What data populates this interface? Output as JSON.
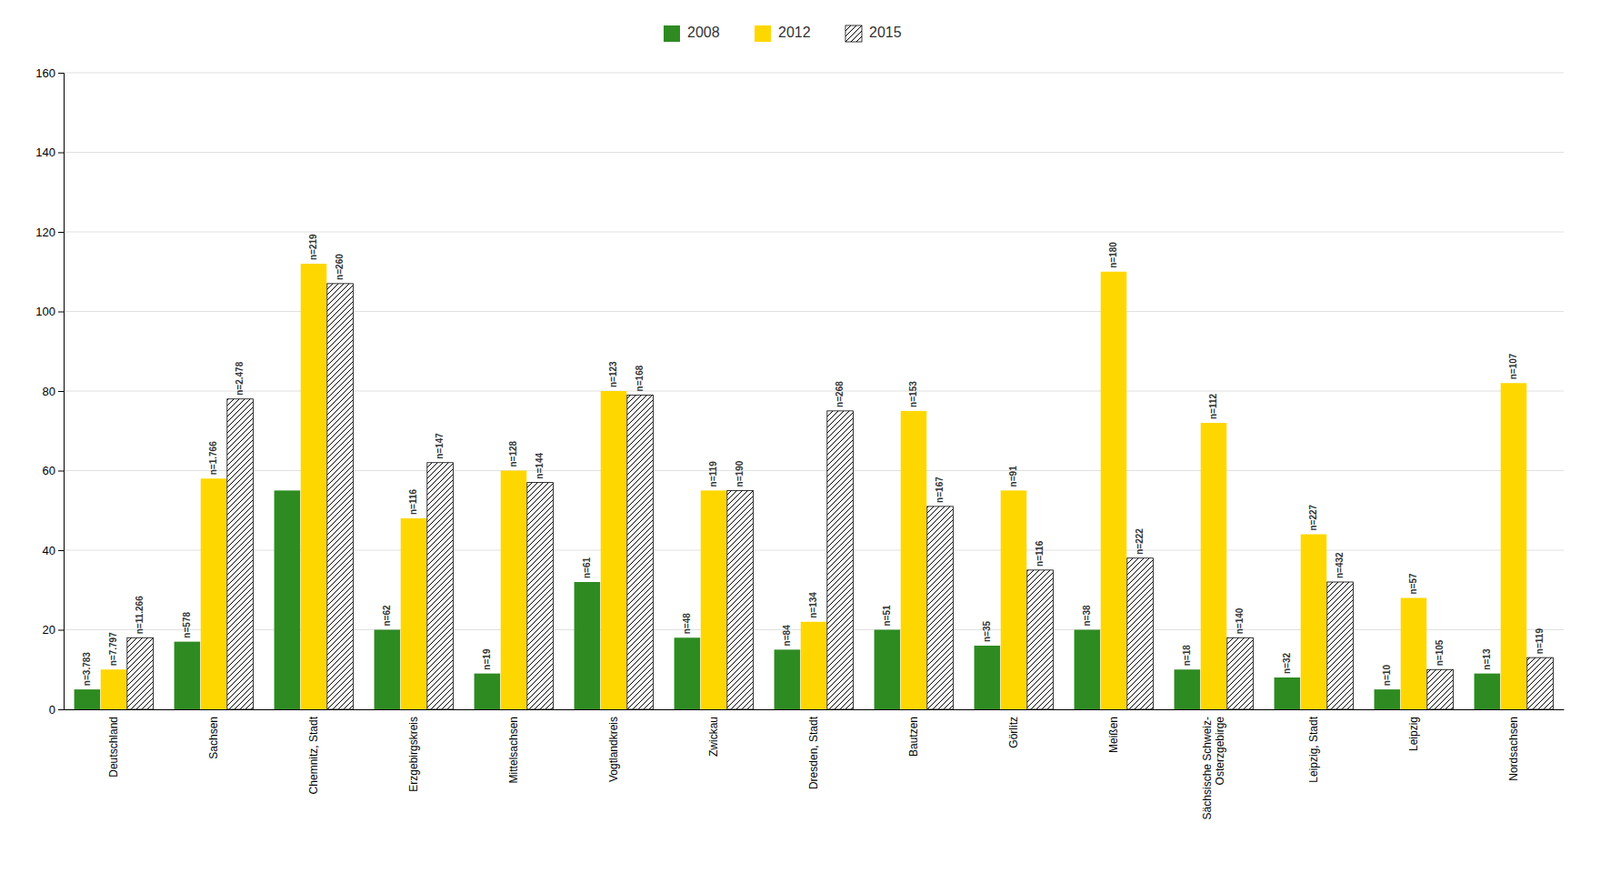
{
  "chart_data": {
    "type": "bar",
    "categories": [
      "Deutschland",
      "Sachsen",
      "Chemnitz, Stadt",
      "Erzgebirgskreis",
      "Mittelsachsen",
      "Vogtlandkreis",
      "Zwickau",
      "Dresden, Stadt",
      "Bautzen",
      "Görlitz",
      "Meißen",
      "Sächsische Schweiz-\nOsterzgebirge",
      "Leipzig, Stadt",
      "Leipzig",
      "Nordsachsen"
    ],
    "series": [
      {
        "name": "2008",
        "color": "#2e8b22",
        "values": [
          5.0,
          17.0,
          55.0,
          20.0,
          9.0,
          32.0,
          18.0,
          15.0,
          20.0,
          16.0,
          20.0,
          10.0,
          8.0,
          5.0,
          9.0
        ],
        "value_labels": [
          "n=3.783",
          "n=578",
          null,
          "n=62",
          "n=19",
          "n=61",
          "n=48",
          "n=84",
          "n=51",
          "n=35",
          "n=38",
          "n=18",
          "n=32",
          "n=10",
          "n=13"
        ]
      },
      {
        "name": "2012",
        "color": "#ffd700",
        "values": [
          10.0,
          58.0,
          112.0,
          48.0,
          60.0,
          80.0,
          55.0,
          22.0,
          75.0,
          55.0,
          110.0,
          72.0,
          44.0,
          28.0,
          82.0
        ],
        "value_labels": [
          "n=7.797",
          "n=1.766",
          "n=219",
          "n=116",
          "n=128",
          "n=123",
          "n=119",
          "n=134",
          "n=153",
          "n=91",
          "n=180",
          "n=112",
          "n=227",
          "n=57",
          "n=107"
        ]
      },
      {
        "name": "2015",
        "color": "#ffffff",
        "values": [
          18.0,
          78.0,
          107.0,
          62.0,
          57.0,
          79.0,
          55.0,
          75.0,
          51.0,
          35.0,
          38.0,
          18.0,
          32.0,
          10.0,
          13.0
        ],
        "value_labels": [
          "n=11.266",
          "n=2.478",
          "n=260",
          "n=147",
          "n=144",
          "n=168",
          "n=190",
          "n=268",
          "n=167",
          "n=116",
          "n=222",
          "n=140",
          "n=432",
          "n=105",
          "n=119"
        ]
      }
    ],
    "ylim": [
      0,
      160
    ],
    "yticks": [
      0,
      20,
      40,
      60,
      80,
      100,
      120,
      140,
      160
    ],
    "grid": true,
    "legend": "top",
    "data_labels": true
  }
}
